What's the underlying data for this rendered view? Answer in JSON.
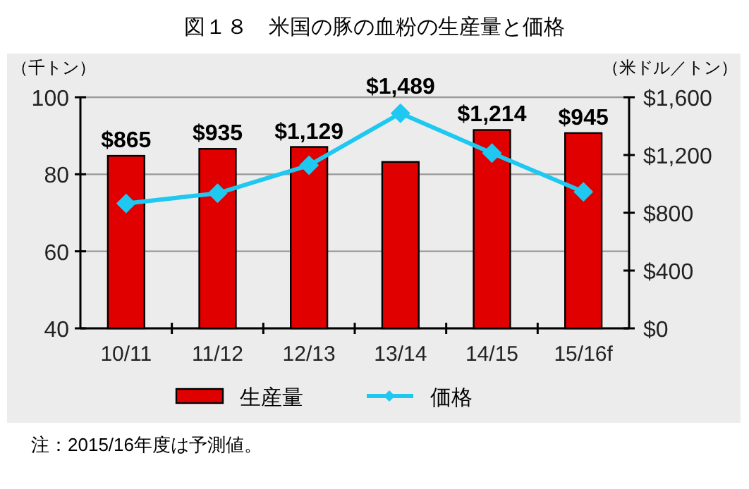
{
  "chart_data": {
    "type": "bar",
    "title": "図１８　米国の豚の血粉の生産量と価格",
    "categories": [
      "10/11",
      "11/12",
      "12/13",
      "13/14",
      "14/15",
      "15/16f"
    ],
    "ylabel": "（千トン）",
    "y2label": "（米ドル／トン）",
    "ylim": [
      40,
      100
    ],
    "yticks": [
      40,
      60,
      80,
      100
    ],
    "y2lim": [
      0,
      1600
    ],
    "y2ticks": [
      {
        "value": 0,
        "label": "$0"
      },
      {
        "value": 400,
        "label": "$400"
      },
      {
        "value": 800,
        "label": "$800"
      },
      {
        "value": 1200,
        "label": "$1,200"
      },
      {
        "value": 1600,
        "label": "$1,600"
      }
    ],
    "grid": "y",
    "legend": "bottom",
    "series": [
      {
        "name": "生産量",
        "color": "#e00000",
        "values": [
          84.8,
          86.6,
          87.1,
          83.2,
          91.5,
          90.7
        ]
      },
      {
        "name": "価格",
        "type": "line",
        "axis": "y2",
        "color": "#1ec8f0",
        "marker": "diamond",
        "values": [
          865,
          935,
          1129,
          1489,
          1214,
          945
        ],
        "value_labels": [
          "$865",
          "$935",
          "$1,129",
          "$1,489",
          "$1,214",
          "$945"
        ]
      }
    ],
    "annotations": [
      "注：2015/16年度は予測値。"
    ]
  }
}
